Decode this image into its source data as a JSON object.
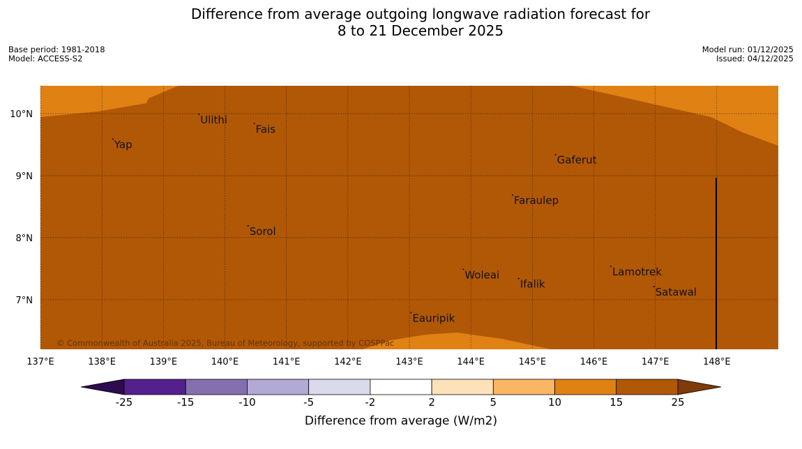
{
  "title": {
    "line1": "Difference from average outgoing longwave radiation forecast for",
    "line2": "8 to 21 December 2025"
  },
  "meta_left": {
    "base_period": "Base period: 1981-2018",
    "model": "Model: ACCESS-S2"
  },
  "meta_right": {
    "model_run": "Model run: 01/12/2025",
    "issued": "Issued: 04/12/2025"
  },
  "map": {
    "lon_ticks": [
      {
        "value": 137,
        "label": "137°E"
      },
      {
        "value": 138,
        "label": "138°E"
      },
      {
        "value": 139,
        "label": "139°E"
      },
      {
        "value": 140,
        "label": "140°E"
      },
      {
        "value": 141,
        "label": "141°E"
      },
      {
        "value": 142,
        "label": "142°E"
      },
      {
        "value": 143,
        "label": "143°E"
      },
      {
        "value": 144,
        "label": "144°E"
      },
      {
        "value": 145,
        "label": "145°E"
      },
      {
        "value": 146,
        "label": "146°E"
      },
      {
        "value": 147,
        "label": "147°E"
      },
      {
        "value": 148,
        "label": "148°E"
      }
    ],
    "lat_ticks": [
      {
        "value": 10,
        "label": "10°N"
      },
      {
        "value": 9,
        "label": "9°N"
      },
      {
        "value": 8,
        "label": "8°N"
      },
      {
        "value": 7,
        "label": "7°N"
      }
    ],
    "places": [
      {
        "name": "Yap",
        "lon": 138.2,
        "lat": 9.5
      },
      {
        "name": "Ulithi",
        "lon": 139.6,
        "lat": 9.9
      },
      {
        "name": "Fais",
        "lon": 140.5,
        "lat": 9.75
      },
      {
        "name": "Gaferut",
        "lon": 145.4,
        "lat": 9.25
      },
      {
        "name": "Faraulep",
        "lon": 144.7,
        "lat": 8.6
      },
      {
        "name": "Sorol",
        "lon": 140.4,
        "lat": 8.1
      },
      {
        "name": "Woleai",
        "lon": 143.9,
        "lat": 7.4
      },
      {
        "name": "Ifalik",
        "lon": 144.8,
        "lat": 7.25
      },
      {
        "name": "Lamotrek",
        "lon": 146.3,
        "lat": 7.45
      },
      {
        "name": "Satawal",
        "lon": 147.0,
        "lat": 7.12
      },
      {
        "name": "Eauripik",
        "lon": 143.05,
        "lat": 6.7
      }
    ],
    "copyright": "© Commonwealth of Australia 2025, Bureau of Meteorology, supported by COSPPac",
    "colors": {
      "main_field": "#b15806",
      "secondary_field": "#e08114"
    }
  },
  "colorbar": {
    "title": "Difference from average (W/m2)",
    "ticks": [
      "-25",
      "-15",
      "-10",
      "-5",
      "-2",
      "2",
      "5",
      "10",
      "15",
      "25"
    ],
    "colors": [
      "#53208c",
      "#8470ae",
      "#b2aad4",
      "#d9daec",
      "#ffffff",
      "#fde1b9",
      "#fbb663",
      "#e08114",
      "#b15806"
    ],
    "under_color": "#2e0a4f",
    "over_color": "#7f3b08"
  }
}
